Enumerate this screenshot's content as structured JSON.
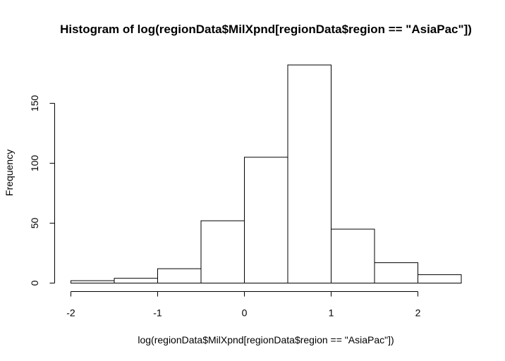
{
  "chart_data": {
    "type": "bar",
    "title": "Histogram of log(regionData$MilXpnd[regionData$region == \"AsiaPac\"])",
    "xlabel": "log(regionData$MilXpnd[regionData$region == \"AsiaPac\"])",
    "ylabel": "Frequency",
    "bin_edges": [
      -2,
      -1.5,
      -1,
      -0.5,
      0,
      0.5,
      1,
      1.5,
      2,
      2.5
    ],
    "values": [
      2,
      4,
      12,
      52,
      105,
      182,
      45,
      17,
      7
    ],
    "x_ticks": [
      -2,
      -1,
      0,
      1,
      2
    ],
    "x_tick_labels": [
      "-2",
      "-1",
      "0",
      "1",
      "2"
    ],
    "y_ticks": [
      0,
      50,
      100,
      150
    ],
    "y_tick_labels": [
      "0",
      "50",
      "100",
      "150"
    ],
    "xlim": [
      -2,
      2.5
    ],
    "ylim": [
      0,
      182
    ],
    "grid": false,
    "bar_fill": "#ffffff",
    "bar_stroke": "#000000"
  }
}
